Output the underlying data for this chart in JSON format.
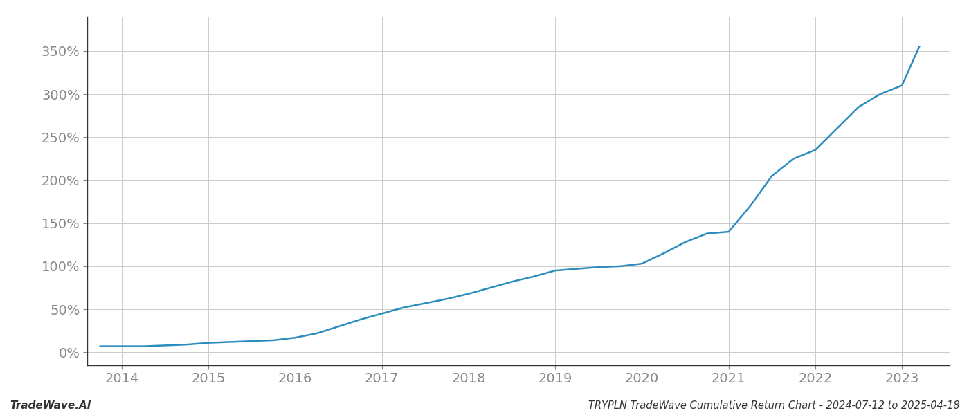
{
  "title": "TRYPLN TradeWave Cumulative Return Chart - 2024-07-12 to 2025-04-18",
  "watermark": "TradeWave.AI",
  "x_years": [
    2014,
    2015,
    2016,
    2017,
    2018,
    2019,
    2020,
    2021,
    2022,
    2023
  ],
  "x_data": [
    2013.75,
    2014.0,
    2014.25,
    2014.5,
    2014.75,
    2015.0,
    2015.25,
    2015.5,
    2015.75,
    2016.0,
    2016.25,
    2016.5,
    2016.75,
    2017.0,
    2017.25,
    2017.5,
    2017.75,
    2018.0,
    2018.25,
    2018.5,
    2018.75,
    2019.0,
    2019.25,
    2019.5,
    2019.75,
    2020.0,
    2020.25,
    2020.5,
    2020.75,
    2021.0,
    2021.25,
    2021.5,
    2021.75,
    2022.0,
    2022.25,
    2022.5,
    2022.75,
    2023.0,
    2023.2
  ],
  "y_data": [
    7,
    7,
    7,
    8,
    9,
    11,
    12,
    13,
    14,
    17,
    22,
    30,
    38,
    45,
    52,
    57,
    62,
    68,
    75,
    82,
    88,
    95,
    97,
    99,
    100,
    103,
    115,
    128,
    138,
    140,
    170,
    205,
    225,
    235,
    260,
    285,
    300,
    310,
    355
  ],
  "line_color": "#2b8cbe",
  "line_width": 1.8,
  "yticks": [
    0,
    50,
    100,
    150,
    200,
    250,
    300,
    350
  ],
  "ylim": [
    -15,
    390
  ],
  "xlim": [
    2013.6,
    2023.55
  ],
  "background_color": "#ffffff",
  "grid_color": "#cccccc",
  "axis_label_color": "#888888",
  "title_color": "#333333",
  "title_fontsize": 10.5,
  "watermark_fontsize": 11,
  "tick_fontsize": 14
}
